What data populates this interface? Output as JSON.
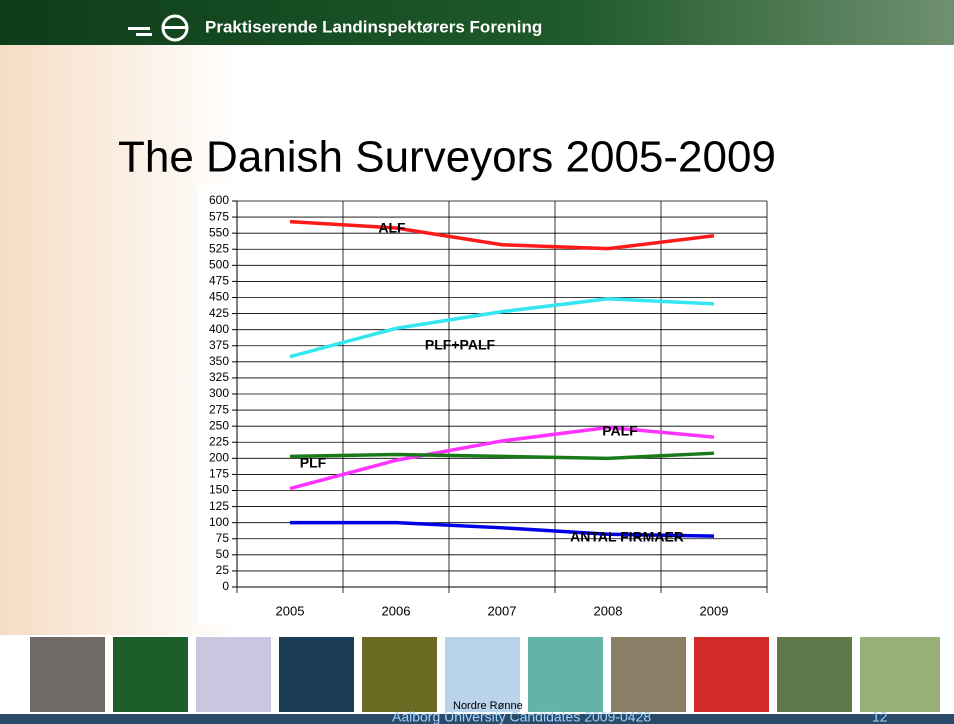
{
  "header": {
    "organization": "Praktiserende Landinspektørers Forening"
  },
  "slide": {
    "title": "The Danish Surveyors 2005-2009",
    "footer": "Aalborg University Candidates 2009-0428",
    "page_number": "12",
    "map_caption": "Nordre Rønne"
  },
  "chart_data": {
    "type": "line",
    "categories": [
      "2005",
      "2006",
      "2007",
      "2008",
      "2009"
    ],
    "series": [
      {
        "name": "ALF",
        "color": "#ff1a1a",
        "values": [
          568,
          558,
          532,
          526,
          546
        ]
      },
      {
        "name": "PLF+PALF",
        "color": "#33e6f0",
        "values": [
          358,
          402,
          428,
          448,
          440
        ]
      },
      {
        "name": "PALF",
        "color": "#ff33ff",
        "values": [
          153,
          197,
          227,
          248,
          233
        ]
      },
      {
        "name": "PLF",
        "color": "#1a7a1a",
        "values": [
          203,
          206,
          203,
          200,
          208
        ]
      },
      {
        "name": "ANTAL FIRMAER",
        "color": "#0000e6",
        "values": [
          100,
          100,
          92,
          82,
          79
        ]
      }
    ],
    "ylim": [
      0,
      600
    ],
    "yticks": [
      0,
      25,
      50,
      75,
      100,
      125,
      150,
      175,
      200,
      225,
      250,
      275,
      300,
      325,
      350,
      375,
      400,
      425,
      450,
      475,
      500,
      525,
      550,
      575,
      600
    ],
    "grid": true
  }
}
